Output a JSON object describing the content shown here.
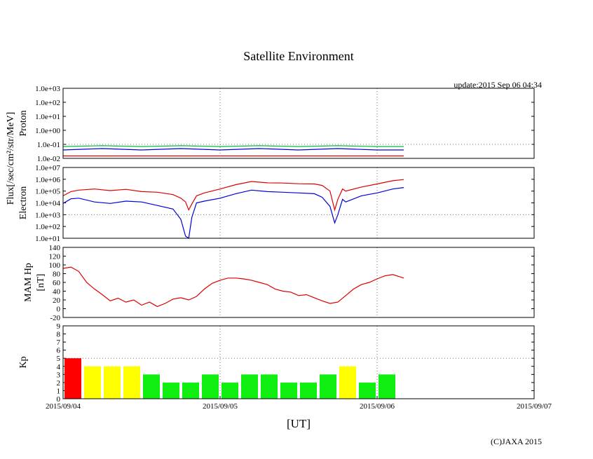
{
  "title": "Satellite Environment",
  "update": "update:2015 Sep 06 04:34",
  "copyright": "(C)JAXA 2015",
  "x_axis": {
    "label": "[UT]",
    "ticks": [
      "2015/09/04",
      "2015/09/05",
      "2015/09/06",
      "2015/09/07"
    ]
  },
  "flux_label": "Flux[/sec/cm²/str/MeV]",
  "colors": {
    "red": "#dd0000",
    "blue": "#0000dd",
    "green": "#00bb44",
    "yellow": "#ffff00",
    "kp_red": "#ff0000",
    "kp_green": "#11ee11"
  },
  "chart_data": [
    {
      "id": "proton",
      "type": "line",
      "ylabel": "Proton",
      "yscale": "log",
      "ylim": [
        0.01,
        1000
      ],
      "xlim_days": [
        0,
        3
      ],
      "yticks": [
        "1.0e+03",
        "1.0e+02",
        "1.0e+01",
        "1.0e+00",
        "1.0e-01",
        "1.0e-02"
      ],
      "series": [
        {
          "color": "green",
          "x_days": [
            0,
            0.25,
            0.5,
            0.75,
            1.0,
            1.25,
            1.5,
            1.75,
            2.0,
            2.17
          ],
          "values": [
            0.07,
            0.08,
            0.07,
            0.08,
            0.07,
            0.08,
            0.07,
            0.08,
            0.07,
            0.07
          ]
        },
        {
          "color": "blue",
          "x_days": [
            0,
            0.25,
            0.5,
            0.75,
            1.0,
            1.25,
            1.5,
            1.75,
            2.0,
            2.17
          ],
          "values": [
            0.04,
            0.05,
            0.04,
            0.05,
            0.04,
            0.05,
            0.04,
            0.05,
            0.04,
            0.04
          ]
        },
        {
          "color": "red",
          "x_days": [
            0,
            0.5,
            1.0,
            1.5,
            2.0,
            2.17
          ],
          "values": [
            0.015,
            0.015,
            0.015,
            0.015,
            0.015,
            0.015
          ]
        }
      ]
    },
    {
      "id": "electron",
      "type": "line",
      "ylabel": "Electron",
      "yscale": "log",
      "ylim": [
        10,
        10000000
      ],
      "xlim_days": [
        0,
        3
      ],
      "yticks": [
        "1.0e+07",
        "1.0e+06",
        "1.0e+05",
        "1.0e+04",
        "1.0e+03",
        "1.0e+02",
        "1.0e+01"
      ],
      "series": [
        {
          "color": "red",
          "x_days": [
            0,
            0.05,
            0.1,
            0.2,
            0.3,
            0.4,
            0.5,
            0.6,
            0.7,
            0.75,
            0.78,
            0.8,
            0.82,
            0.85,
            0.9,
            1.0,
            1.1,
            1.2,
            1.3,
            1.4,
            1.5,
            1.6,
            1.65,
            1.7,
            1.73,
            1.75,
            1.78,
            1.8,
            1.9,
            2.0,
            2.1,
            2.17
          ],
          "values": [
            40000,
            90000,
            120000,
            150000,
            110000,
            140000,
            90000,
            80000,
            50000,
            25000,
            12000,
            2500,
            8000,
            40000,
            70000,
            150000,
            350000,
            650000,
            500000,
            480000,
            420000,
            400000,
            300000,
            100000,
            2500,
            20000,
            150000,
            100000,
            220000,
            400000,
            750000,
            950000
          ]
        },
        {
          "color": "blue",
          "x_days": [
            0,
            0.05,
            0.1,
            0.2,
            0.3,
            0.4,
            0.5,
            0.6,
            0.7,
            0.75,
            0.78,
            0.8,
            0.82,
            0.85,
            0.9,
            1.0,
            1.1,
            1.2,
            1.3,
            1.4,
            1.5,
            1.6,
            1.65,
            1.7,
            1.73,
            1.75,
            1.78,
            1.8,
            1.9,
            2.0,
            2.1,
            2.17
          ],
          "values": [
            9000,
            22000,
            25000,
            12000,
            9000,
            14000,
            12000,
            6000,
            3000,
            400,
            15,
            10,
            600,
            10000,
            14000,
            25000,
            60000,
            120000,
            90000,
            80000,
            70000,
            60000,
            30000,
            5000,
            200,
            1000,
            20000,
            12000,
            40000,
            70000,
            150000,
            200000
          ]
        }
      ]
    },
    {
      "id": "mam",
      "type": "line",
      "ylabel": "MAM Hp",
      "ylabel2": "[nT]",
      "ylim": [
        -20,
        140
      ],
      "xlim_days": [
        0,
        3
      ],
      "yticks": [
        "140",
        "120",
        "100",
        "80",
        "60",
        "40",
        "20",
        "0",
        "-20"
      ],
      "series": [
        {
          "color": "red",
          "x_days": [
            0,
            0.05,
            0.1,
            0.15,
            0.2,
            0.25,
            0.3,
            0.35,
            0.4,
            0.45,
            0.5,
            0.55,
            0.6,
            0.65,
            0.7,
            0.75,
            0.8,
            0.85,
            0.9,
            0.95,
            1.0,
            1.05,
            1.1,
            1.15,
            1.2,
            1.25,
            1.3,
            1.35,
            1.4,
            1.45,
            1.5,
            1.55,
            1.6,
            1.65,
            1.7,
            1.75,
            1.8,
            1.85,
            1.9,
            1.95,
            2.0,
            2.05,
            2.1,
            2.17
          ],
          "values": [
            92,
            95,
            85,
            60,
            45,
            32,
            18,
            24,
            15,
            20,
            8,
            15,
            5,
            12,
            22,
            25,
            20,
            28,
            45,
            58,
            65,
            70,
            70,
            68,
            65,
            60,
            55,
            45,
            40,
            38,
            30,
            32,
            25,
            18,
            12,
            15,
            30,
            45,
            55,
            60,
            68,
            75,
            78,
            70
          ]
        }
      ]
    },
    {
      "id": "kp",
      "type": "bar",
      "ylabel": "Kp",
      "ylim": [
        0,
        9
      ],
      "xlim_days": [
        0,
        3
      ],
      "yticks": [
        "9",
        "8",
        "7",
        "6",
        "5",
        "4",
        "3",
        "2",
        "1",
        "0"
      ],
      "bar_width_hours": 3,
      "values": [
        5,
        4,
        4,
        4,
        3,
        2,
        2,
        3,
        2,
        3,
        3,
        2,
        2,
        3,
        4,
        2,
        3
      ],
      "bar_colors": [
        "kp_red",
        "yellow",
        "yellow",
        "yellow",
        "kp_green",
        "kp_green",
        "kp_green",
        "kp_green",
        "kp_green",
        "kp_green",
        "kp_green",
        "kp_green",
        "kp_green",
        "kp_green",
        "yellow",
        "kp_green",
        "kp_green"
      ]
    }
  ]
}
